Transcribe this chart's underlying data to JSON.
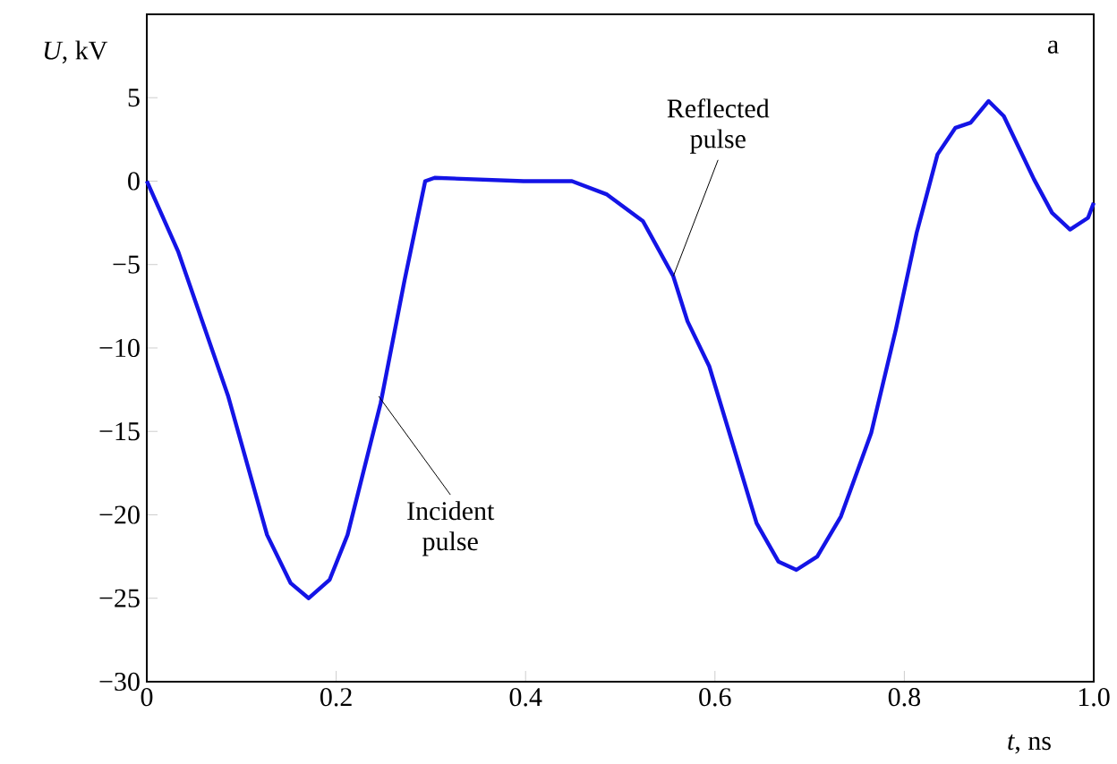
{
  "chart_data": {
    "type": "line",
    "xlabel": "*t*, ns",
    "ylabel": "*U*, kV",
    "x": [
      0,
      0.033,
      0.086,
      0.127,
      0.152,
      0.171,
      0.193,
      0.212,
      0.247,
      0.272,
      0.294,
      0.304,
      0.398,
      0.449,
      0.486,
      0.524,
      0.556,
      0.571,
      0.594,
      0.619,
      0.644,
      0.667,
      0.686,
      0.708,
      0.733,
      0.765,
      0.791,
      0.813,
      0.835,
      0.854,
      0.87,
      0.889,
      0.905,
      0.937,
      0.956,
      0.975,
      0.994,
      1.0
    ],
    "series": [
      {
        "color": "#1414e6",
        "values": [
          0,
          -4.2,
          -12.9,
          -21.2,
          -24.1,
          -25.0,
          -23.9,
          -21.2,
          -13.3,
          -6.0,
          0,
          0.2,
          0,
          0,
          -0.8,
          -2.4,
          -5.7,
          -8.4,
          -11.1,
          -15.8,
          -20.5,
          -22.8,
          -23.3,
          -22.5,
          -20.1,
          -15.1,
          -8.9,
          -3.1,
          1.6,
          3.2,
          3.5,
          4.8,
          3.9,
          0.1,
          -1.9,
          -2.9,
          -2.2,
          -1.3
        ]
      }
    ],
    "xlim": [
      0,
      1.0
    ],
    "ylim": [
      -30,
      10
    ],
    "xticks": [
      0,
      0.2,
      0.4,
      0.6,
      0.8,
      {
        "value": 1.0,
        "label": "1.0"
      }
    ],
    "yticks": [
      {
        "value": -30,
        "label": "−30"
      },
      {
        "value": -25,
        "label": "−25"
      },
      {
        "value": -20,
        "label": "−20"
      },
      {
        "value": -15,
        "label": "−15"
      },
      {
        "value": -10,
        "label": "−10"
      },
      {
        "value": -5,
        "label": "−5"
      },
      0,
      5
    ],
    "annotations": [
      {
        "text": "Incident pulse",
        "x": 0.245,
        "y": -12.9
      },
      {
        "text": "Reflected pulse",
        "x": 0.556,
        "y": -5.7
      },
      "a"
    ],
    "grid": false,
    "marker": "none",
    "line_style": "solid"
  }
}
